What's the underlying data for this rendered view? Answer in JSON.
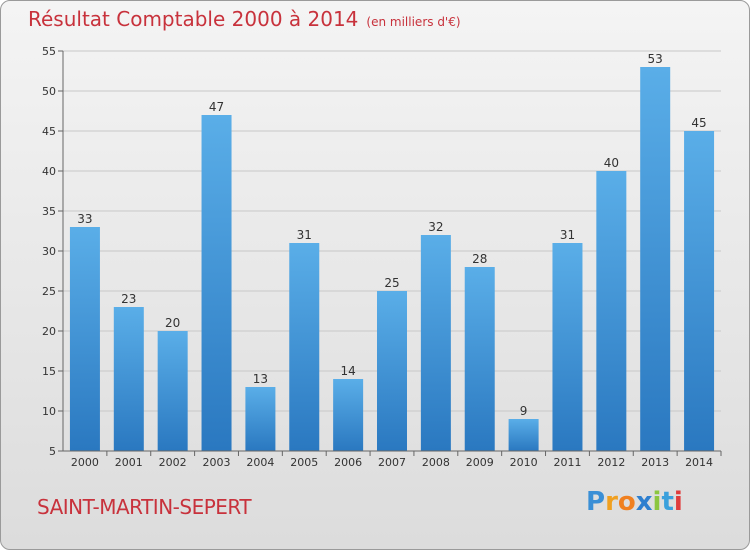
{
  "title": "Résultat Comptable 2000 à 2014",
  "subtitle": "(en milliers d'€)",
  "town": "SAINT-MARTIN-SEPERT",
  "logo": "Proxiti",
  "chart_data": {
    "type": "bar",
    "title": "Résultat Comptable 2000 à 2014",
    "subtitle": "(en milliers d'€)",
    "categories": [
      "2000",
      "2001",
      "2002",
      "2003",
      "2004",
      "2005",
      "2006",
      "2007",
      "2008",
      "2009",
      "2010",
      "2011",
      "2012",
      "2013",
      "2014"
    ],
    "values": [
      33,
      23,
      20,
      47,
      13,
      31,
      14,
      25,
      32,
      28,
      9,
      31,
      40,
      53,
      45
    ],
    "ylim": [
      5,
      55
    ],
    "yticks": [
      5,
      10,
      15,
      20,
      25,
      30,
      35,
      40,
      45,
      50,
      55
    ],
    "grid": true,
    "bar_color": "#3a8fd6"
  }
}
